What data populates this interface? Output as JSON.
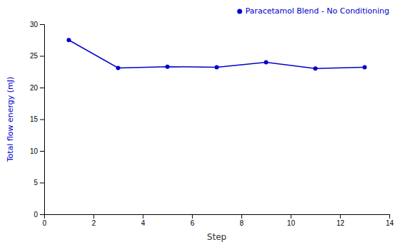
{
  "chart_data": {
    "type": "line",
    "x": [
      1,
      3,
      5,
      7,
      9,
      11,
      13
    ],
    "series": [
      {
        "name": "Paracetamol Blend - No Conditioning",
        "color": "#0000CC",
        "marker": "dot",
        "values": [
          27.5,
          23.1,
          23.3,
          23.2,
          24.0,
          23.0,
          23.2
        ]
      }
    ],
    "xlabel": "Step",
    "ylabel": "Total flow energy  (mJ)",
    "xlim": [
      0,
      14
    ],
    "ylim": [
      0,
      30
    ],
    "xticks": [
      0,
      2,
      4,
      6,
      8,
      10,
      12,
      14
    ],
    "yticks": [
      0,
      5,
      10,
      15,
      20,
      25,
      30
    ],
    "legend": "upper right"
  }
}
